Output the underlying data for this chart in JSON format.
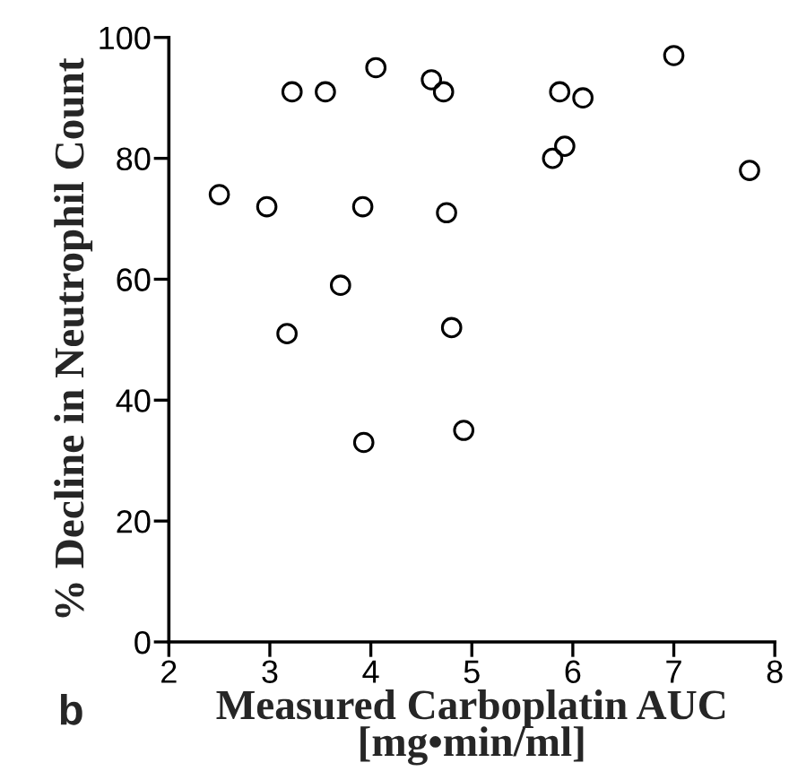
{
  "chart_data": {
    "type": "scatter",
    "xlabel": "Measured Carboplatin AUC\n[mg•min/ml]",
    "ylabel": "% Decline in Neutrophil Count",
    "annotations": [
      "b"
    ],
    "x": [
      2.5,
      2.97,
      3.17,
      3.22,
      3.55,
      3.7,
      3.92,
      3.93,
      4.05,
      4.6,
      4.72,
      4.75,
      4.8,
      4.92,
      5.8,
      5.87,
      5.92,
      6.1,
      7.0,
      7.75
    ],
    "values": [
      74,
      72,
      51,
      91,
      91,
      59,
      72,
      33,
      95,
      93,
      91,
      71,
      52,
      35,
      80,
      91,
      82,
      90,
      97,
      78
    ],
    "color": "#000000",
    "marker": "circle",
    "xlim": [
      2,
      8
    ],
    "xticks": [
      2,
      3,
      4,
      5,
      6,
      7,
      8
    ],
    "ylim": [
      0,
      100
    ],
    "yticks": [
      0,
      20,
      40,
      60,
      80,
      100
    ],
    "grid": false,
    "legend": false
  }
}
